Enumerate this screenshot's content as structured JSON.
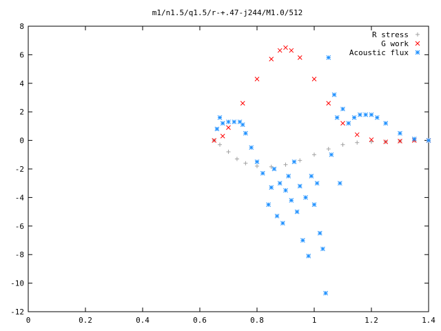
{
  "chart_data": {
    "type": "scatter",
    "title": "m1/n1.5/q1.5/r-+.47-j244/M1.0/512",
    "xlabel": "",
    "ylabel": "",
    "xlim": [
      0,
      1.4
    ],
    "ylim": [
      -12,
      8
    ],
    "xticks": [
      0,
      0.2,
      0.4,
      0.6,
      0.8,
      1,
      1.2,
      1.4
    ],
    "xtick_labels": [
      "0",
      "0.2",
      "0.4",
      "0.6",
      "0.8",
      "1",
      "1.2",
      "1.4"
    ],
    "yticks": [
      -12,
      -10,
      -8,
      -6,
      -4,
      -2,
      0,
      2,
      4,
      6,
      8
    ],
    "ytick_labels": [
      "-12",
      "-10",
      "-8",
      "-6",
      "-4",
      "-2",
      "0",
      "2",
      "4",
      "6",
      "8"
    ],
    "grid": false,
    "legend_position": "top-right",
    "series": [
      {
        "name": "R stress",
        "marker": "plus",
        "color": "#a0a0a0",
        "x": [
          0.65,
          0.67,
          0.7,
          0.73,
          0.76,
          0.8,
          0.85,
          0.9,
          0.95,
          1.0,
          1.05,
          1.1,
          1.15,
          1.2,
          1.25,
          1.3,
          1.35,
          1.4
        ],
        "y": [
          0.0,
          -0.3,
          -0.8,
          -1.3,
          -1.6,
          -1.8,
          -1.85,
          -1.7,
          -1.4,
          -1.0,
          -0.6,
          -0.3,
          -0.15,
          -0.1,
          -0.1,
          -0.05,
          0.0,
          0.0
        ]
      },
      {
        "name": "G work",
        "marker": "cross",
        "color": "#ff0000",
        "x": [
          0.65,
          0.68,
          0.7,
          0.75,
          0.8,
          0.85,
          0.88,
          0.9,
          0.92,
          0.95,
          1.0,
          1.05,
          1.1,
          1.15,
          1.2,
          1.25,
          1.3,
          1.35,
          1.4
        ],
        "y": [
          0.0,
          0.3,
          0.9,
          2.6,
          4.3,
          5.7,
          6.3,
          6.5,
          6.3,
          5.8,
          4.3,
          2.6,
          1.2,
          0.4,
          0.05,
          -0.1,
          -0.05,
          0.0,
          0.0
        ]
      },
      {
        "name": "Acoustic flux",
        "marker": "star",
        "color": "#1e90ff",
        "x": [
          0.66,
          0.67,
          0.68,
          0.7,
          0.72,
          0.74,
          0.75,
          0.76,
          0.78,
          0.8,
          0.82,
          0.84,
          0.85,
          0.86,
          0.87,
          0.88,
          0.89,
          0.9,
          0.91,
          0.92,
          0.93,
          0.94,
          0.95,
          0.96,
          0.97,
          0.98,
          0.99,
          1.0,
          1.01,
          1.02,
          1.03,
          1.04,
          1.05,
          1.06,
          1.07,
          1.08,
          1.09,
          1.1,
          1.12,
          1.14,
          1.16,
          1.18,
          1.2,
          1.22,
          1.25,
          1.3,
          1.35,
          1.4
        ],
        "y": [
          0.8,
          1.6,
          1.2,
          1.3,
          1.3,
          1.3,
          1.1,
          0.5,
          -0.5,
          -1.5,
          -2.3,
          -4.5,
          -3.3,
          -2.0,
          -5.3,
          -3.0,
          -5.8,
          -3.5,
          -2.5,
          -4.2,
          -1.5,
          -5.0,
          -3.2,
          -7.0,
          -4.0,
          -8.1,
          -2.5,
          -4.5,
          -3.0,
          -6.5,
          -7.6,
          -10.7,
          5.8,
          -1.0,
          3.2,
          1.6,
          -3.0,
          2.2,
          1.2,
          1.6,
          1.8,
          1.8,
          1.8,
          1.6,
          1.2,
          0.5,
          0.1,
          0.0
        ]
      }
    ]
  }
}
